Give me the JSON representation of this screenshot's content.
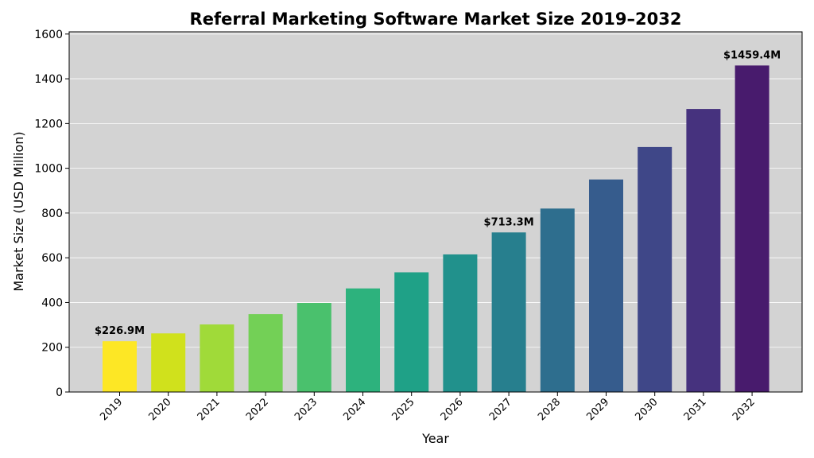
{
  "chart_data": {
    "type": "bar",
    "title": "Referral Marketing Software Market Size 2019–2032",
    "xlabel": "Year",
    "ylabel": "Market Size (USD Million)",
    "ylim": [
      0,
      1610
    ],
    "yticks": [
      0,
      200,
      400,
      600,
      800,
      1000,
      1200,
      1400,
      1600
    ],
    "grid": true,
    "categories": [
      "2019",
      "2020",
      "2021",
      "2022",
      "2023",
      "2024",
      "2025",
      "2026",
      "2027",
      "2028",
      "2029",
      "2030",
      "2031",
      "2032"
    ],
    "values": [
      226.9,
      262,
      302,
      348,
      398,
      463,
      535,
      615,
      713.3,
      820,
      950,
      1095,
      1265,
      1459.4
    ],
    "colors": [
      "#fde725",
      "#d0e11c",
      "#a0da39",
      "#73d056",
      "#4ac16d",
      "#2db27d",
      "#1fa187",
      "#21918c",
      "#277f8e",
      "#2e6e8e",
      "#365c8d",
      "#3f4788",
      "#46327e",
      "#481b6d"
    ],
    "annotations": [
      {
        "index": 0,
        "text": "$226.9M"
      },
      {
        "index": 8,
        "text": "$713.3M"
      },
      {
        "index": 13,
        "text": "$1459.4M"
      }
    ]
  }
}
